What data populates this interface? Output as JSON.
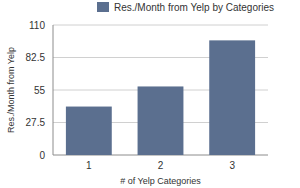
{
  "chart_data": {
    "type": "bar",
    "title": "Res./Month from Yelp by Categories",
    "x_label": "# of Yelp Categories",
    "y_label": "Res./Month from Yelp",
    "categories": [
      "1",
      "2",
      "3"
    ],
    "values": [
      41,
      58,
      97
    ],
    "color": "#5b6f8f",
    "ylim": [
      0,
      110
    ],
    "yticks": [
      0,
      27.5,
      55,
      82.5,
      110
    ],
    "grid": true,
    "legend": "top"
  }
}
